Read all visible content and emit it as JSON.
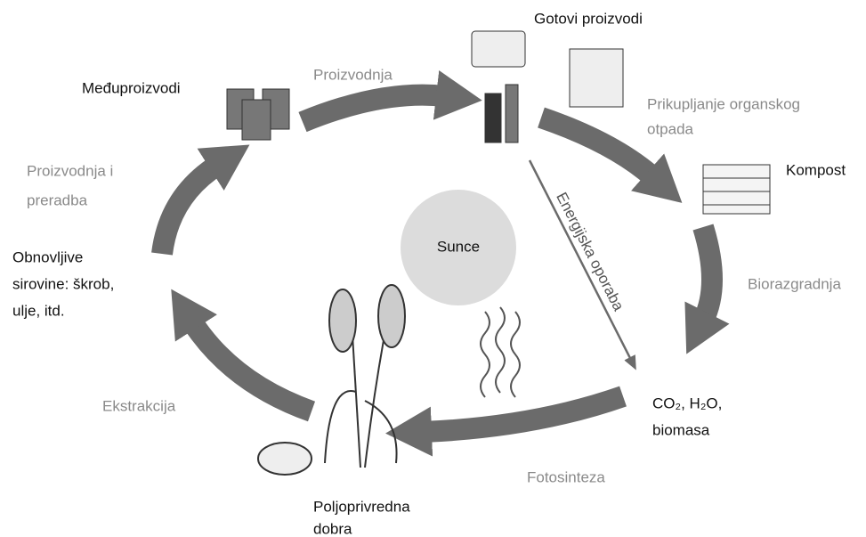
{
  "title": "Gotovi proizvodi",
  "nodes": {
    "intermediate": [
      "Međuproizvodi"
    ],
    "compost": [
      "Kompost"
    ],
    "raw": [
      "Obnovljive",
      "sirovine: škrob,",
      "ulje, itd."
    ],
    "outputs": [
      "CO₂, H₂O,",
      "biomasa"
    ],
    "crops": [
      "Poljoprivredna",
      "dobra"
    ],
    "sun": "Sunce"
  },
  "processes": {
    "production": [
      "Proizvodnja"
    ],
    "collection": [
      "Prikupljanje organskog",
      "otpada"
    ],
    "biodegradation": [
      "Biorazgradnja"
    ],
    "photosynthesis": [
      "Fotosinteza"
    ],
    "extraction": [
      "Ekstrakcija"
    ],
    "processing": [
      "Proizvodnja i",
      "preradba"
    ],
    "energy": "Energijska oporaba"
  }
}
